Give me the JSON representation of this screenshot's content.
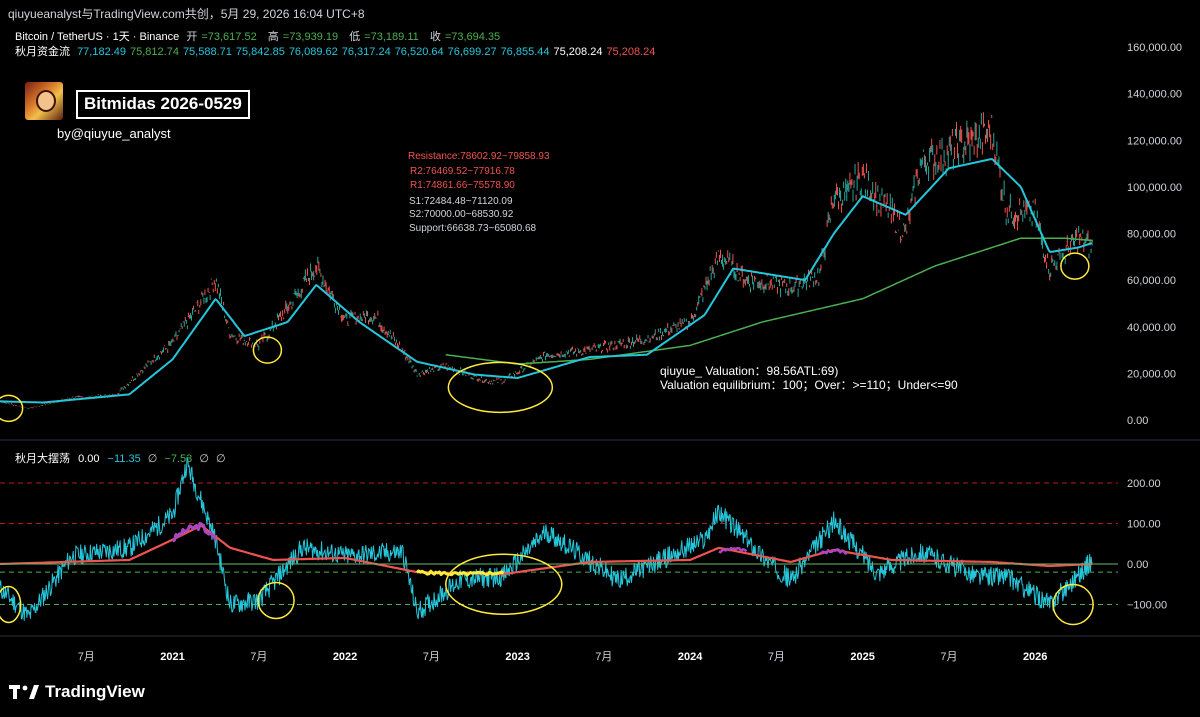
{
  "header": {
    "watermark": "qiuyueanalyst与TradingView.com共创，5月 29, 2026 16:04 UTC+8"
  },
  "legend": {
    "symbol": "Bitcoin / TetherUS · 1天 · Binance",
    "open_label": "开",
    "open": "=73,617.52",
    "high_label": "高",
    "high": "=73,939.19",
    "low_label": "低",
    "low": "=73,189.11",
    "close_label": "收",
    "close": "=73,694.35",
    "indicator_name": "秋月资金流",
    "indicator_values": [
      {
        "v": "77,182.49",
        "c": "#26c6da"
      },
      {
        "v": "75,812.74",
        "c": "#4caf50"
      },
      {
        "v": "75,588.71",
        "c": "#26c6da"
      },
      {
        "v": "75,842.85",
        "c": "#26c6da"
      },
      {
        "v": "76,089.62",
        "c": "#26c6da"
      },
      {
        "v": "76,317.24",
        "c": "#26c6da"
      },
      {
        "v": "76,520.64",
        "c": "#26c6da"
      },
      {
        "v": "76,699.27",
        "c": "#26c6da"
      },
      {
        "v": "76,855.44",
        "c": "#26c6da"
      },
      {
        "v": "75,208.24",
        "c": "#ffffff"
      },
      {
        "v": "75,208.24",
        "c": "#ef5350"
      }
    ]
  },
  "branding": {
    "title": "Bitmidas 2026-0529",
    "byline": "by@qiuyue_analyst"
  },
  "levels": {
    "resistance": "Resistance:78602.92~79858.93",
    "r2": "R2:76469.52~77916.78",
    "r1": "R1:74861.66~75578.90",
    "s1": "S1:72484.48~71120.09",
    "s2": "S2:70000.00~68530.92",
    "support": "Support:66638.73~65080.68",
    "resistance_color": "#ef5350",
    "support_color": "#d1d4dc"
  },
  "valuation": {
    "line1": "qiuyue_ Valuation：98.56ATL:69)",
    "line2": "Valuation equilibrium：100；Over：>=110；Under<=90"
  },
  "oscillator_legend": {
    "name": "秋月大摆荡",
    "v1": "0.00",
    "v2": "−11.35",
    "v3": "−7.53",
    "empty_glyph": "∅"
  },
  "footer": {
    "logo_text": "TradingView"
  },
  "chart_data": [
    {
      "type": "line",
      "title": "Bitcoin / TetherUS · 1天 · Binance",
      "price_axis_ticks": [
        "160,000.00",
        "140,000.00",
        "120,000.00",
        "100,000.00",
        "80,000.00",
        "60,000.00",
        "40,000.00",
        "20,000.00",
        "0.00"
      ],
      "ylim": [
        0,
        160000
      ],
      "x_ticks": [
        "7月",
        "2021",
        "7月",
        "2022",
        "7月",
        "2023",
        "7月",
        "2024",
        "7月",
        "2025",
        "7月",
        "2026"
      ],
      "series": [
        {
          "role": "close",
          "color": "#ef5350",
          "x": [
            "2020-01",
            "2020-03",
            "2020-06",
            "2020-09",
            "2020-12",
            "2021-01",
            "2021-04",
            "2021-05",
            "2021-07",
            "2021-09",
            "2021-11",
            "2022-01",
            "2022-03",
            "2022-05",
            "2022-06",
            "2022-08",
            "2022-11",
            "2022-12",
            "2023-03",
            "2023-06",
            "2023-10",
            "2024-01",
            "2024-03",
            "2024-05",
            "2024-08",
            "2024-10",
            "2024-11",
            "2024-12",
            "2025-01",
            "2025-04",
            "2025-05",
            "2025-08",
            "2025-10",
            "2025-11",
            "2026-01",
            "2026-02",
            "2026-04",
            "2026-05"
          ],
          "values": [
            8000,
            5000,
            9500,
            10500,
            28000,
            33000,
            60000,
            37000,
            32000,
            48000,
            66000,
            43000,
            45000,
            30000,
            20000,
            23000,
            16500,
            16800,
            28000,
            30000,
            35000,
            42000,
            70000,
            60000,
            57000,
            62000,
            96000,
            97000,
            104000,
            80000,
            110000,
            118000,
            124000,
            90000,
            88000,
            65000,
            78000,
            73694
          ]
        },
        {
          "role": "fast ma",
          "color": "#26c6da",
          "x": [
            "2020-01",
            "2020-04",
            "2020-10",
            "2021-01",
            "2021-04",
            "2021-06",
            "2021-09",
            "2021-11",
            "2022-02",
            "2022-06",
            "2022-10",
            "2023-01",
            "2023-06",
            "2023-10",
            "2024-02",
            "2024-04",
            "2024-09",
            "2024-11",
            "2025-01",
            "2025-04",
            "2025-07",
            "2025-10",
            "2025-12",
            "2026-02",
            "2026-04",
            "2026-05"
          ],
          "values": [
            8000,
            7500,
            11000,
            26000,
            52000,
            36000,
            42000,
            58000,
            42000,
            25000,
            19500,
            18000,
            27000,
            28000,
            45000,
            65000,
            60000,
            80000,
            96000,
            88000,
            108000,
            112000,
            100000,
            72000,
            74000,
            76000
          ]
        },
        {
          "role": "long ma",
          "color": "#4caf50",
          "x": [
            "2022-08",
            "2023-01",
            "2023-06",
            "2024-01",
            "2024-06",
            "2025-01",
            "2025-06",
            "2025-12",
            "2026-03",
            "2026-05"
          ],
          "values": [
            28000,
            24000,
            26000,
            32000,
            42000,
            52000,
            66000,
            78000,
            78000,
            77000
          ]
        }
      ]
    },
    {
      "type": "line",
      "title": "秋月大摆荡",
      "axis_ticks": [
        "200.00",
        "100.00",
        "0.00",
        "−100.00"
      ],
      "ylim": [
        -150,
        260
      ],
      "dashed_levels": [
        200,
        100,
        -20,
        -100
      ],
      "series": [
        {
          "role": "oscillator",
          "color": "#26c6da",
          "x": [
            "2020-01",
            "2020-03",
            "2020-06",
            "2020-10",
            "2021-01",
            "2021-02",
            "2021-04",
            "2021-05",
            "2021-07",
            "2021-10",
            "2022-01",
            "2022-05",
            "2022-06",
            "2022-09",
            "2022-12",
            "2023-03",
            "2023-08",
            "2024-02",
            "2024-03",
            "2024-06",
            "2024-08",
            "2024-11",
            "2025-02",
            "2025-05",
            "2025-09",
            "2025-11",
            "2026-02",
            "2026-05"
          ],
          "values": [
            -60,
            -130,
            20,
            40,
            120,
            250,
            60,
            -100,
            -90,
            40,
            20,
            30,
            -120,
            -40,
            -30,
            80,
            -40,
            60,
            130,
            20,
            -40,
            105,
            -20,
            30,
            -30,
            -30,
            -100,
            10
          ]
        },
        {
          "role": "smoothed",
          "color": "#ef5350",
          "x": [
            "2020-01",
            "2020-10",
            "2021-01",
            "2021-03",
            "2021-05",
            "2021-08",
            "2022-01",
            "2022-06",
            "2022-12",
            "2023-06",
            "2024-01",
            "2024-03",
            "2024-08",
            "2024-11",
            "2025-03",
            "2025-10",
            "2026-02",
            "2026-05"
          ],
          "values": [
            0,
            10,
            60,
            95,
            40,
            10,
            15,
            -20,
            -25,
            5,
            10,
            40,
            5,
            35,
            10,
            5,
            -5,
            0
          ]
        }
      ]
    }
  ]
}
